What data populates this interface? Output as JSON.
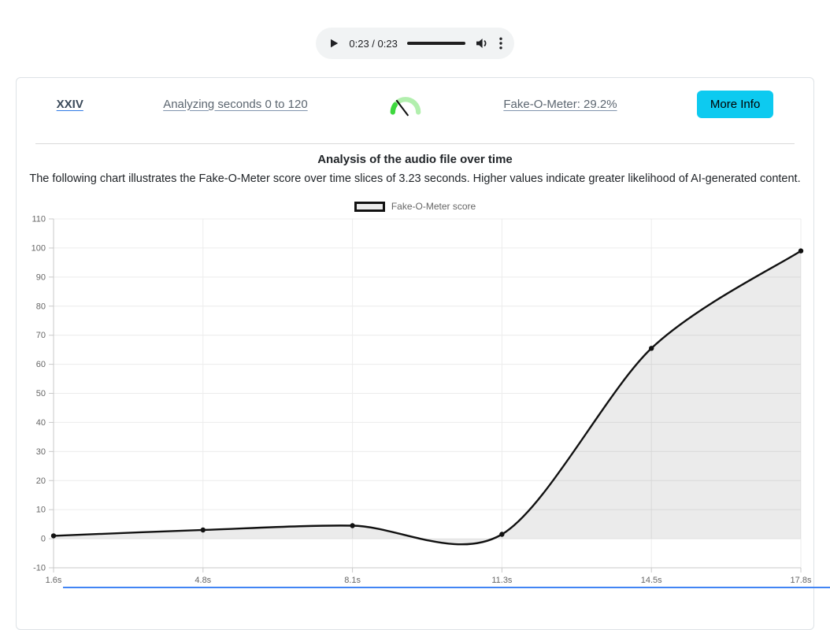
{
  "player": {
    "time_display": "0:23 / 0:23"
  },
  "header": {
    "track_title": "XXIV",
    "analyzing_link": "Analyzing seconds 0 to 120",
    "meter_link": "Fake-O-Meter: 29.2%",
    "meter_percent": 29.2,
    "more_info_label": "More Info"
  },
  "analysis": {
    "title": "Analysis of the audio file over time",
    "subtitle": "The following chart illustrates the Fake-O-Meter score over time slices of 3.23 seconds. Higher values indicate greater likelihood of AI-generated content."
  },
  "chart_data": {
    "type": "area",
    "categories": [
      "1.6s",
      "4.8s",
      "8.1s",
      "11.3s",
      "14.5s",
      "17.8s"
    ],
    "series": [
      {
        "name": "Fake-O-Meter score",
        "values": [
          1,
          3,
          4.5,
          1.5,
          65.5,
          99
        ]
      }
    ],
    "xlabel": "",
    "ylabel": "",
    "ylim": [
      -10,
      110
    ],
    "ytick_step": 10,
    "grid": true,
    "legend_position": "top",
    "line_color": "#111111",
    "fill_color": "rgba(0,0,0,0.08)",
    "grid_color": "#ececec",
    "axis_color": "#c9c9c9",
    "tick_label_color": "#666666"
  },
  "colors": {
    "more_info_bg": "#0dcaf0",
    "gauge_light_green": "#b2efae",
    "gauge_bright_green": "#3ed83e",
    "link_underline_blue": "#2f7ae5",
    "bottom_strip": "#4285f4"
  }
}
